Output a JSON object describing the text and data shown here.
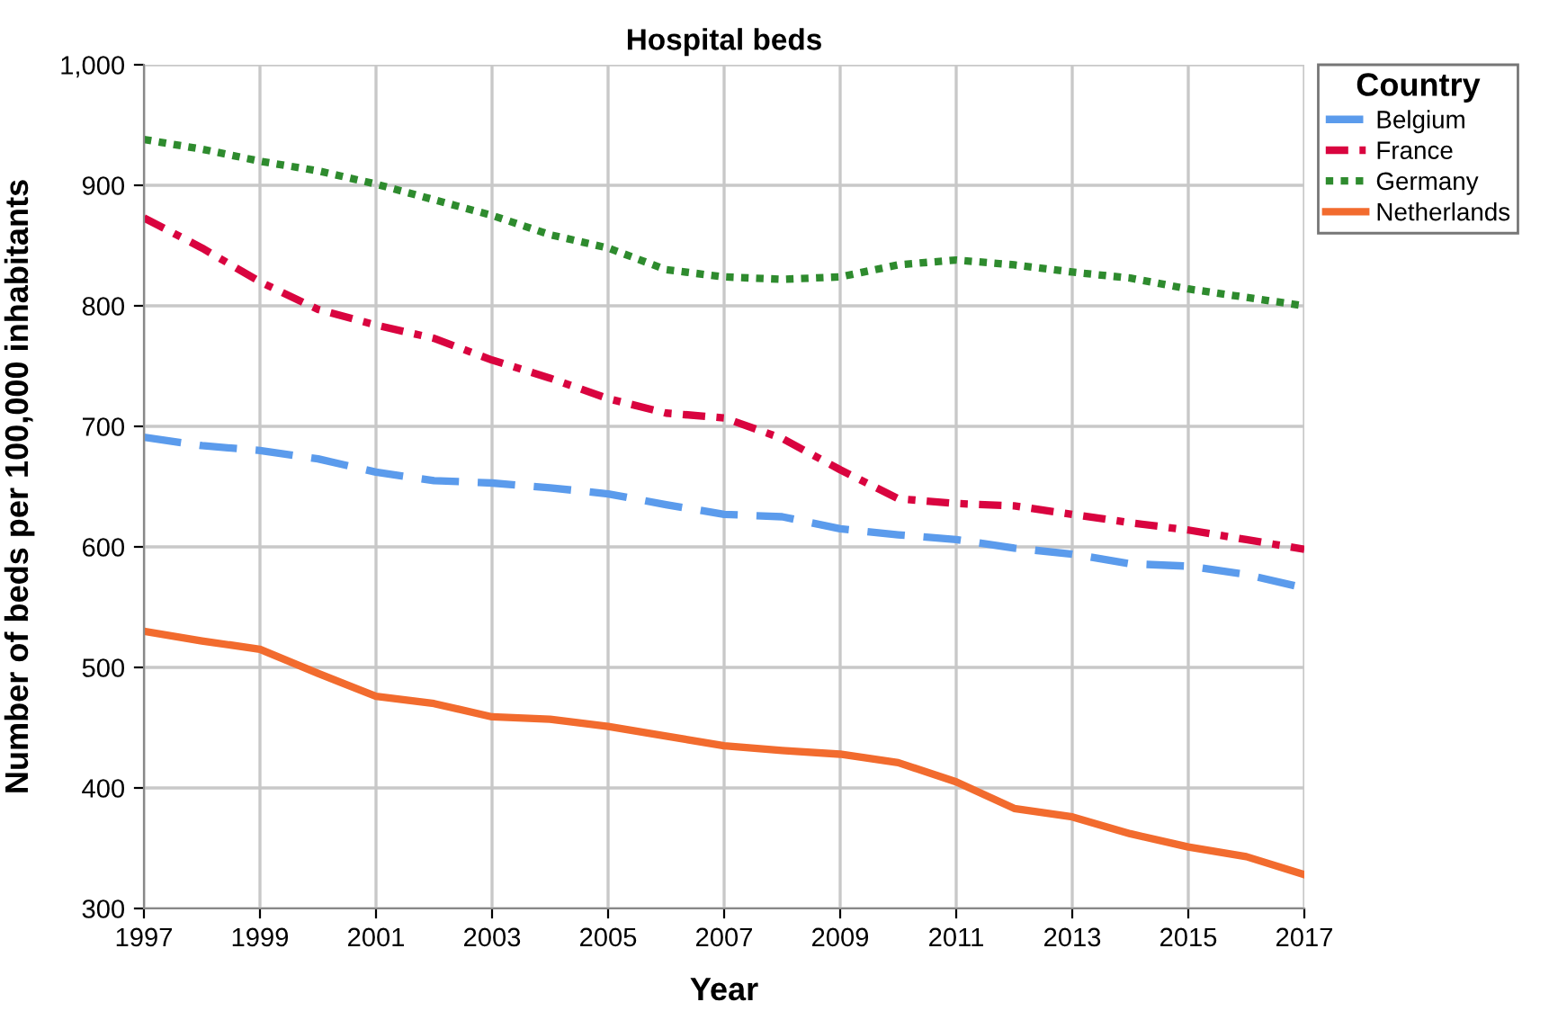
{
  "chart_data": {
    "type": "line",
    "title": "Hospital beds",
    "xlabel": "Year",
    "ylabel": "Number of beds per 100,000 inhabitants",
    "legend_title": "Country",
    "x": [
      1997,
      1998,
      1999,
      2000,
      2001,
      2002,
      2003,
      2004,
      2005,
      2006,
      2007,
      2008,
      2009,
      2010,
      2011,
      2012,
      2013,
      2014,
      2015,
      2016,
      2017
    ],
    "series": [
      {
        "name": "Belgium",
        "color": "#5b9bec",
        "line_style": "dashed",
        "values": [
          691,
          684,
          680,
          673,
          662,
          655,
          653,
          649,
          644,
          635,
          627,
          625,
          615,
          610,
          606,
          599,
          594,
          586,
          584,
          577,
          566
        ]
      },
      {
        "name": "France",
        "color": "#d9043f",
        "line_style": "dashdot",
        "values": [
          873,
          848,
          820,
          797,
          784,
          773,
          755,
          740,
          723,
          711,
          707,
          690,
          664,
          640,
          636,
          634,
          627,
          620,
          614,
          606,
          598
        ]
      },
      {
        "name": "Germany",
        "color": "#2e8b2e",
        "line_style": "dotted",
        "values": [
          938,
          930,
          920,
          912,
          901,
          888,
          875,
          859,
          848,
          830,
          824,
          822,
          824,
          834,
          838,
          834,
          828,
          823,
          814,
          807,
          800
        ]
      },
      {
        "name": "Netherlands",
        "color": "#f26b2e",
        "line_style": "solid",
        "values": [
          530,
          522,
          515,
          495,
          476,
          470,
          459,
          457,
          451,
          443,
          435,
          431,
          428,
          421,
          405,
          383,
          376,
          362,
          351,
          343,
          328
        ]
      }
    ],
    "xlim": [
      1997,
      2017
    ],
    "xticks": [
      1997,
      1999,
      2001,
      2003,
      2005,
      2007,
      2009,
      2011,
      2013,
      2015,
      2017
    ],
    "ylim": [
      300,
      1000
    ],
    "yticks": [
      300,
      400,
      500,
      600,
      700,
      800,
      900,
      {
        "value": 1000,
        "label": "1,000"
      }
    ],
    "grid": true,
    "legend": "top right"
  }
}
